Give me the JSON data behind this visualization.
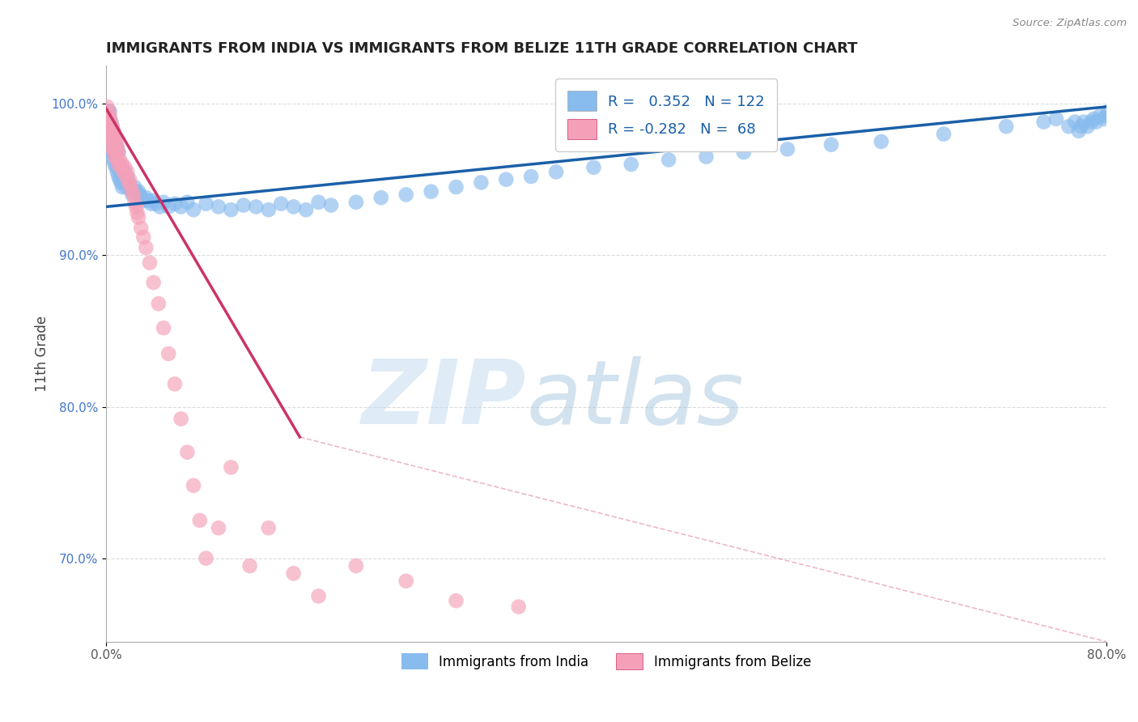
{
  "title": "IMMIGRANTS FROM INDIA VS IMMIGRANTS FROM BELIZE 11TH GRADE CORRELATION CHART",
  "source": "Source: ZipAtlas.com",
  "ylabel": "11th Grade",
  "xlim": [
    0.0,
    0.8
  ],
  "ylim": [
    0.645,
    1.025
  ],
  "india_color": "#88bbee",
  "belize_color": "#f4a0b8",
  "india_line_color": "#1a5fa8",
  "belize_line_color": "#cc3366",
  "india_R": 0.352,
  "india_N": 122,
  "belize_R": -0.282,
  "belize_N": 68,
  "grid_color": "#cccccc",
  "background_color": "#ffffff",
  "india_scatter_x": [
    0.001,
    0.001,
    0.002,
    0.002,
    0.002,
    0.002,
    0.003,
    0.003,
    0.003,
    0.003,
    0.003,
    0.004,
    0.004,
    0.004,
    0.004,
    0.005,
    0.005,
    0.005,
    0.005,
    0.006,
    0.006,
    0.006,
    0.006,
    0.007,
    0.007,
    0.007,
    0.008,
    0.008,
    0.008,
    0.009,
    0.009,
    0.009,
    0.01,
    0.01,
    0.01,
    0.011,
    0.011,
    0.012,
    0.012,
    0.013,
    0.013,
    0.014,
    0.015,
    0.015,
    0.016,
    0.017,
    0.018,
    0.019,
    0.02,
    0.021,
    0.022,
    0.023,
    0.024,
    0.025,
    0.026,
    0.027,
    0.028,
    0.03,
    0.032,
    0.034,
    0.036,
    0.038,
    0.04,
    0.043,
    0.046,
    0.05,
    0.055,
    0.06,
    0.065,
    0.07,
    0.08,
    0.09,
    0.1,
    0.11,
    0.12,
    0.13,
    0.14,
    0.15,
    0.16,
    0.17,
    0.18,
    0.2,
    0.22,
    0.24,
    0.26,
    0.28,
    0.3,
    0.32,
    0.34,
    0.36,
    0.39,
    0.42,
    0.45,
    0.48,
    0.51,
    0.545,
    0.58,
    0.62,
    0.67,
    0.72,
    0.75,
    0.76,
    0.77,
    0.775,
    0.778,
    0.78,
    0.782,
    0.785,
    0.788,
    0.79,
    0.792,
    0.795,
    0.798,
    0.8,
    0.802,
    0.805,
    0.808,
    0.81,
    0.812,
    0.815,
    0.817,
    0.82
  ],
  "india_scatter_y": [
    0.98,
    0.99,
    0.975,
    0.985,
    0.988,
    0.995,
    0.97,
    0.978,
    0.982,
    0.99,
    0.995,
    0.968,
    0.975,
    0.98,
    0.988,
    0.965,
    0.972,
    0.978,
    0.985,
    0.963,
    0.97,
    0.975,
    0.982,
    0.96,
    0.968,
    0.975,
    0.958,
    0.965,
    0.972,
    0.955,
    0.963,
    0.97,
    0.952,
    0.96,
    0.968,
    0.95,
    0.958,
    0.948,
    0.955,
    0.945,
    0.953,
    0.95,
    0.948,
    0.955,
    0.945,
    0.952,
    0.948,
    0.945,
    0.943,
    0.94,
    0.943,
    0.945,
    0.942,
    0.94,
    0.942,
    0.94,
    0.938,
    0.936,
    0.938,
    0.936,
    0.934,
    0.936,
    0.934,
    0.932,
    0.935,
    0.932,
    0.934,
    0.932,
    0.935,
    0.93,
    0.934,
    0.932,
    0.93,
    0.933,
    0.932,
    0.93,
    0.934,
    0.932,
    0.93,
    0.935,
    0.933,
    0.935,
    0.938,
    0.94,
    0.942,
    0.945,
    0.948,
    0.95,
    0.952,
    0.955,
    0.958,
    0.96,
    0.963,
    0.965,
    0.968,
    0.97,
    0.973,
    0.975,
    0.98,
    0.985,
    0.988,
    0.99,
    0.985,
    0.988,
    0.982,
    0.985,
    0.988,
    0.985,
    0.988,
    0.99,
    0.988,
    0.992,
    0.99,
    0.992,
    0.995,
    0.992,
    0.995,
    0.992,
    0.995,
    0.998,
    0.995,
    0.998
  ],
  "belize_scatter_x": [
    0.001,
    0.001,
    0.001,
    0.002,
    0.002,
    0.002,
    0.003,
    0.003,
    0.003,
    0.004,
    0.004,
    0.004,
    0.005,
    0.005,
    0.005,
    0.005,
    0.006,
    0.006,
    0.006,
    0.007,
    0.007,
    0.007,
    0.008,
    0.008,
    0.009,
    0.009,
    0.01,
    0.01,
    0.011,
    0.012,
    0.013,
    0.014,
    0.015,
    0.016,
    0.017,
    0.018,
    0.019,
    0.02,
    0.021,
    0.022,
    0.023,
    0.024,
    0.025,
    0.026,
    0.028,
    0.03,
    0.032,
    0.035,
    0.038,
    0.042,
    0.046,
    0.05,
    0.055,
    0.06,
    0.065,
    0.07,
    0.075,
    0.08,
    0.09,
    0.1,
    0.115,
    0.13,
    0.15,
    0.17,
    0.2,
    0.24,
    0.28,
    0.33
  ],
  "belize_scatter_y": [
    0.998,
    0.992,
    0.988,
    0.995,
    0.99,
    0.985,
    0.992,
    0.985,
    0.98,
    0.988,
    0.982,
    0.978,
    0.985,
    0.98,
    0.975,
    0.97,
    0.982,
    0.975,
    0.97,
    0.978,
    0.972,
    0.965,
    0.975,
    0.968,
    0.972,
    0.963,
    0.968,
    0.96,
    0.963,
    0.958,
    0.96,
    0.955,
    0.958,
    0.952,
    0.955,
    0.948,
    0.95,
    0.945,
    0.942,
    0.94,
    0.935,
    0.932,
    0.928,
    0.925,
    0.918,
    0.912,
    0.905,
    0.895,
    0.882,
    0.868,
    0.852,
    0.835,
    0.815,
    0.792,
    0.77,
    0.748,
    0.725,
    0.7,
    0.72,
    0.76,
    0.695,
    0.72,
    0.69,
    0.675,
    0.695,
    0.685,
    0.672,
    0.668
  ],
  "india_trend_x0": 0.0,
  "india_trend_y0": 0.932,
  "india_trend_x1": 0.8,
  "india_trend_y1": 0.998,
  "belize_trend_solid_x0": 0.0,
  "belize_trend_solid_y0": 0.997,
  "belize_trend_solid_x1": 0.155,
  "belize_trend_solid_y1": 0.78,
  "belize_trend_dash_x1": 0.8,
  "belize_trend_dash_y1": 0.645
}
